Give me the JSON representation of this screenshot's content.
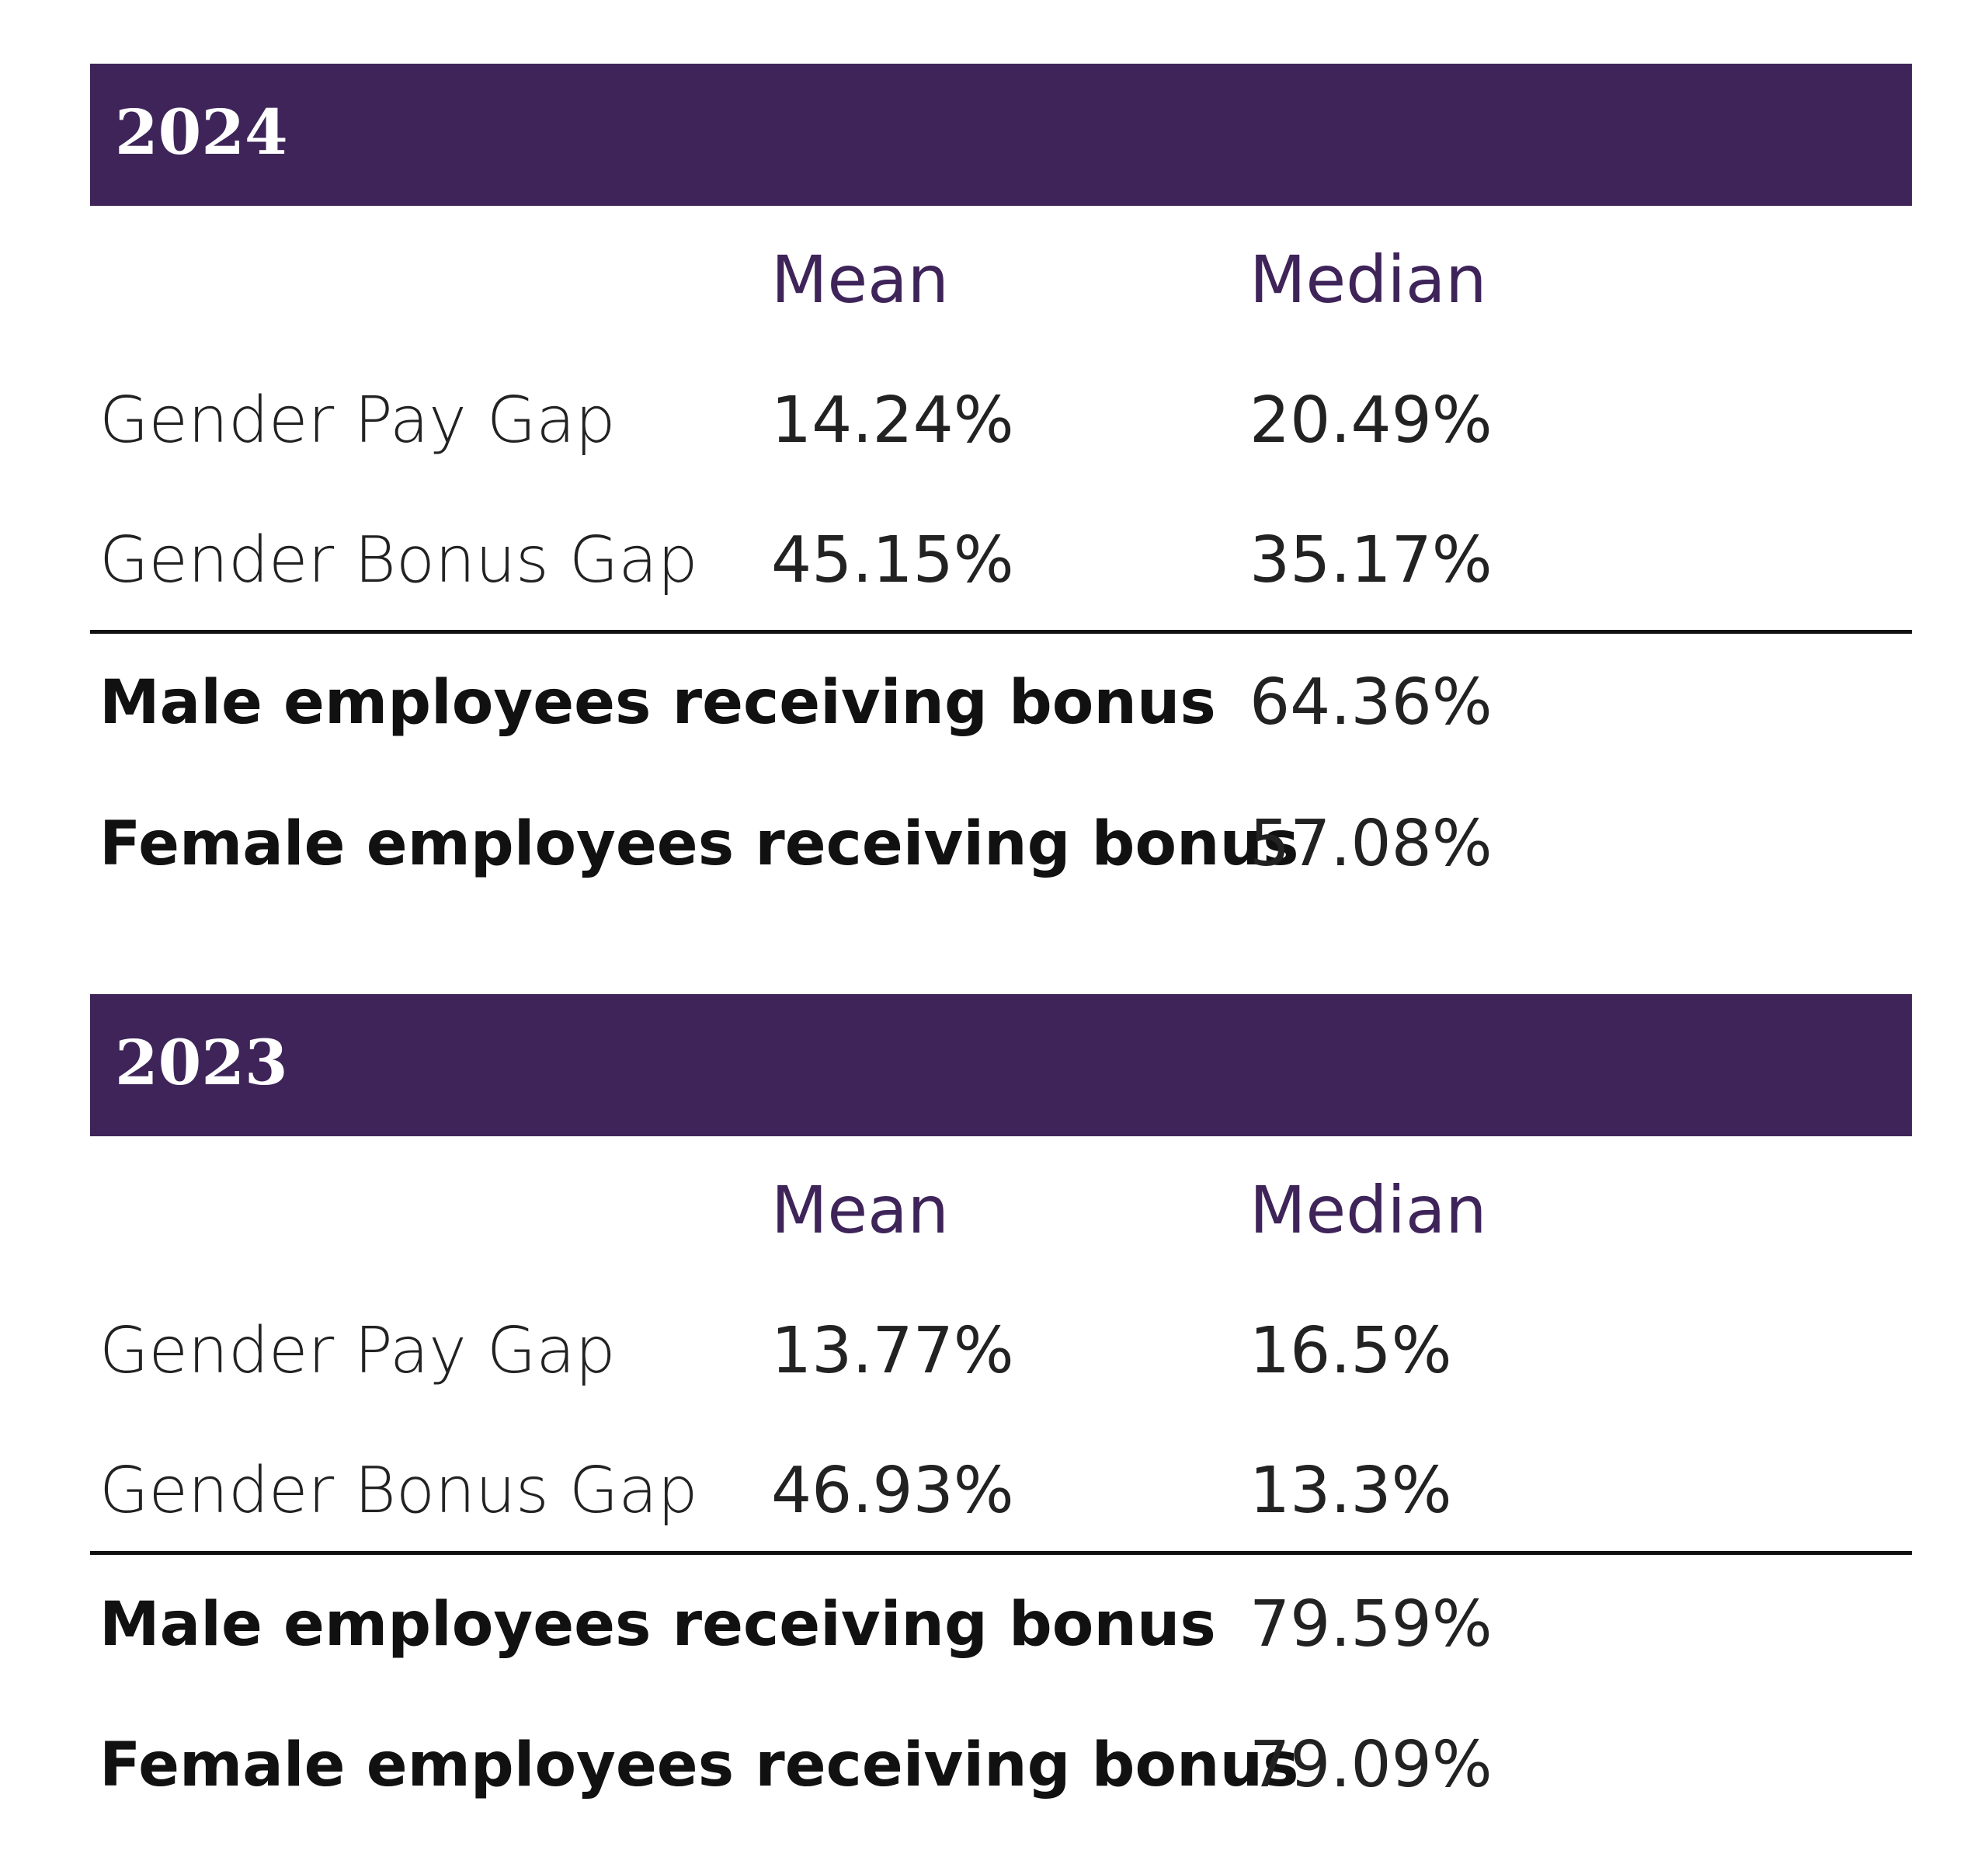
{
  "sections": [
    {
      "year": "2024",
      "headers": {
        "mean": "Mean",
        "median": "Median"
      },
      "gap_rows": [
        {
          "label": "Gender Pay Gap",
          "mean": "14.24%",
          "median": "20.49%"
        },
        {
          "label": "Gender Bonus Gap",
          "mean": "45.15%",
          "median": "35.17%"
        }
      ],
      "bonus_rows": [
        {
          "label": "Male employees receiving bonus",
          "value": "64.36%"
        },
        {
          "label": "Female employees receiving bonus",
          "value": "57.08%"
        }
      ]
    },
    {
      "year": "2023",
      "headers": {
        "mean": "Mean",
        "median": "Median"
      },
      "gap_rows": [
        {
          "label": "Gender Pay Gap",
          "mean": "13.77%",
          "median": "16.5%"
        },
        {
          "label": "Gender Bonus Gap",
          "mean": "46.93%",
          "median": "13.3%"
        }
      ],
      "bonus_rows": [
        {
          "label": "Male employees receiving bonus",
          "value": "79.59%"
        },
        {
          "label": "Female employees receiving bonus",
          "value": "79.09%"
        }
      ]
    }
  ],
  "colors": {
    "header_background": "#3e2459",
    "header_text": "#ffffff",
    "column_heading": "#3e2459",
    "divider": "#111111"
  }
}
